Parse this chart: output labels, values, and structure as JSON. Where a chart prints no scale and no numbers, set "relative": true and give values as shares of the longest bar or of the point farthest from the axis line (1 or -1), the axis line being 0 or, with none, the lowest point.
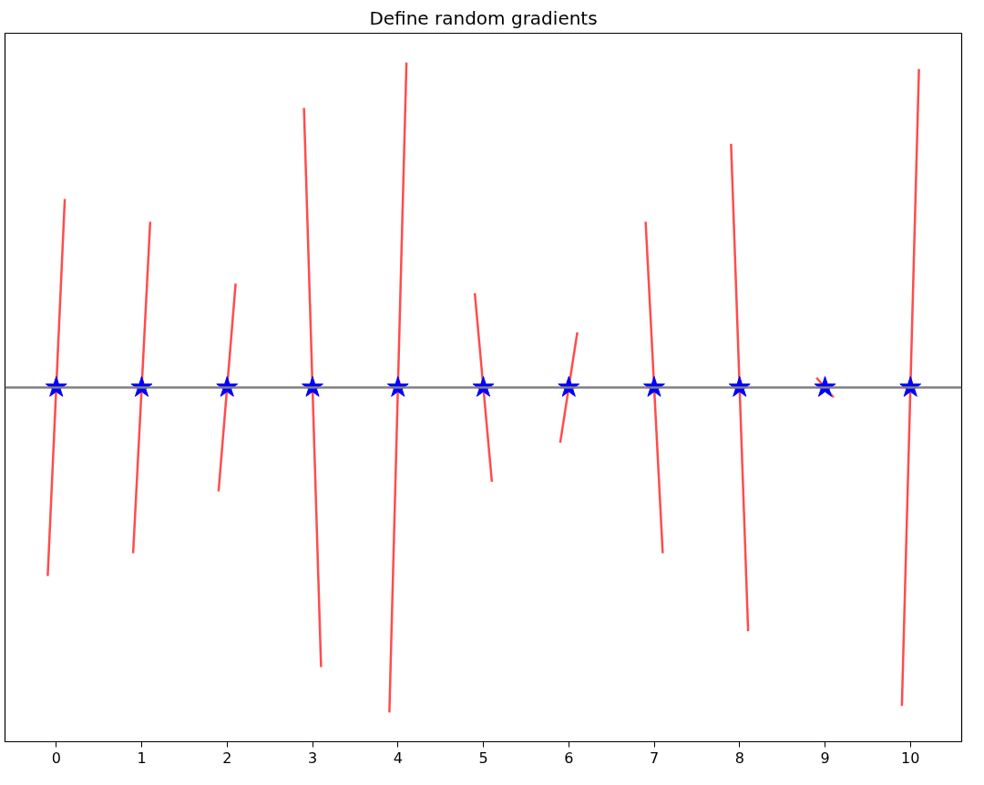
{
  "chart_data": {
    "type": "line",
    "title": "Define random gradients",
    "relative": true,
    "xlim": [
      -0.6,
      10.6
    ],
    "xticks": [
      0,
      1,
      2,
      3,
      4,
      5,
      6,
      7,
      8,
      9,
      10
    ],
    "tick_labels": "x",
    "grid": false,
    "line_style": "solid",
    "ref_lines": [
      {
        "axis": "y",
        "value": 0,
        "color": "#808080"
      }
    ],
    "series": [
      {
        "color": "#ff4c4c",
        "x": [
          -0.1,
          0.1
        ],
        "values": [
          -0.58,
          0.58
        ]
      },
      {
        "color": "#ff4c4c",
        "x": [
          0.9,
          1.1
        ],
        "values": [
          -0.51,
          0.51
        ]
      },
      {
        "color": "#ff4c4c",
        "x": [
          1.9,
          2.1
        ],
        "values": [
          -0.32,
          0.32
        ]
      },
      {
        "color": "#ff4c4c",
        "x": [
          2.9,
          3.1
        ],
        "values": [
          0.86,
          -0.86
        ]
      },
      {
        "color": "#ff4c4c",
        "x": [
          3.9,
          4.1
        ],
        "values": [
          -1,
          1
        ]
      },
      {
        "color": "#ff4c4c",
        "x": [
          4.9,
          5.1
        ],
        "values": [
          0.29,
          -0.29
        ]
      },
      {
        "color": "#ff4c4c",
        "x": [
          5.9,
          6.1
        ],
        "values": [
          -0.17,
          0.17
        ]
      },
      {
        "color": "#ff4c4c",
        "x": [
          6.9,
          7.1
        ],
        "values": [
          0.51,
          -0.51
        ]
      },
      {
        "color": "#ff4c4c",
        "x": [
          7.9,
          8.1
        ],
        "values": [
          0.75,
          -0.75
        ]
      },
      {
        "color": "#ff4c4c",
        "x": [
          8.9,
          9.1
        ],
        "values": [
          0.03,
          -0.03
        ]
      },
      {
        "color": "#ff4c4c",
        "x": [
          9.9,
          10.1
        ],
        "values": [
          -0.98,
          0.98
        ]
      },
      {
        "type": "scatter",
        "marker": "star",
        "color": "#0000ff",
        "x": [
          0,
          1,
          2,
          3,
          4,
          5,
          6,
          7,
          8,
          9,
          10
        ],
        "values": [
          0,
          0,
          0,
          0,
          0,
          0,
          0,
          0,
          0,
          0,
          0
        ]
      }
    ]
  }
}
